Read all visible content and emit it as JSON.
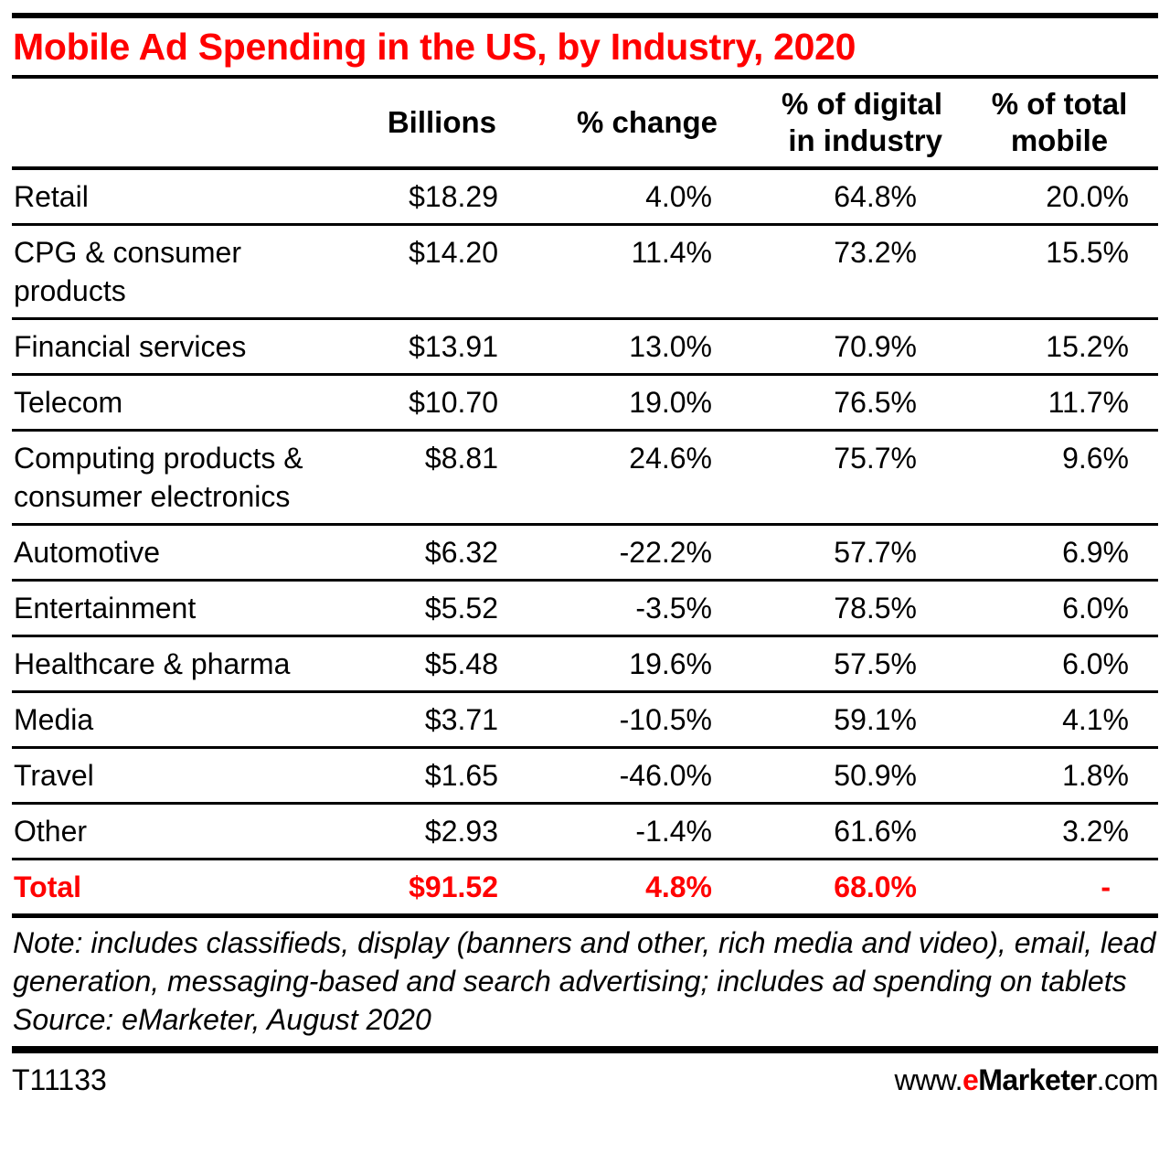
{
  "chart_data": {
    "type": "table",
    "title": "Mobile Ad Spending in the US, by Industry, 2020",
    "columns": [
      "",
      "Billions",
      "% change",
      "% of digital in industry",
      "% of total mobile"
    ],
    "column_labels": {
      "billions": "Billions",
      "change": "% change",
      "digital_line1": "% of digital",
      "digital_line2": "in industry",
      "mobile_line1": "% of total",
      "mobile_line2": "mobile"
    },
    "rows": [
      {
        "industry": "Retail",
        "billions": "$18.29",
        "change": "4.0%",
        "digital": "64.8%",
        "mobile": "20.0%"
      },
      {
        "industry": "CPG & consumer products",
        "billions": "$14.20",
        "change": "11.4%",
        "digital": "73.2%",
        "mobile": "15.5%"
      },
      {
        "industry": "Financial services",
        "billions": "$13.91",
        "change": "13.0%",
        "digital": "70.9%",
        "mobile": "15.2%"
      },
      {
        "industry": "Telecom",
        "billions": "$10.70",
        "change": "19.0%",
        "digital": "76.5%",
        "mobile": "11.7%"
      },
      {
        "industry": "Computing products & consumer electronics",
        "billions": "$8.81",
        "change": "24.6%",
        "digital": "75.7%",
        "mobile": "9.6%"
      },
      {
        "industry": "Automotive",
        "billions": "$6.32",
        "change": "-22.2%",
        "digital": "57.7%",
        "mobile": "6.9%"
      },
      {
        "industry": "Entertainment",
        "billions": "$5.52",
        "change": "-3.5%",
        "digital": "78.5%",
        "mobile": "6.0%"
      },
      {
        "industry": "Healthcare & pharma",
        "billions": "$5.48",
        "change": "19.6%",
        "digital": "57.5%",
        "mobile": "6.0%"
      },
      {
        "industry": "Media",
        "billions": "$3.71",
        "change": "-10.5%",
        "digital": "59.1%",
        "mobile": "4.1%"
      },
      {
        "industry": "Travel",
        "billions": "$1.65",
        "change": "-46.0%",
        "digital": "50.9%",
        "mobile": "1.8%"
      },
      {
        "industry": "Other",
        "billions": "$2.93",
        "change": "-1.4%",
        "digital": "61.6%",
        "mobile": "3.2%"
      }
    ],
    "total": {
      "industry": "Total",
      "billions": "$91.52",
      "change": "4.8%",
      "digital": "68.0%",
      "mobile": "-"
    },
    "note": "Note: includes classifieds, display (banners and other, rich media and video), email, lead generation, messaging-based and search advertising; includes ad spending on tablets",
    "source": "Source: eMarketer, August 2020"
  },
  "footer": {
    "chart_id": "T11133",
    "site_prefix": "www.",
    "site_e": "e",
    "site_brand": "Marketer",
    "site_suffix": ".com"
  },
  "colors": {
    "accent": "#ff0000",
    "text": "#000000",
    "rule": "#000000"
  }
}
